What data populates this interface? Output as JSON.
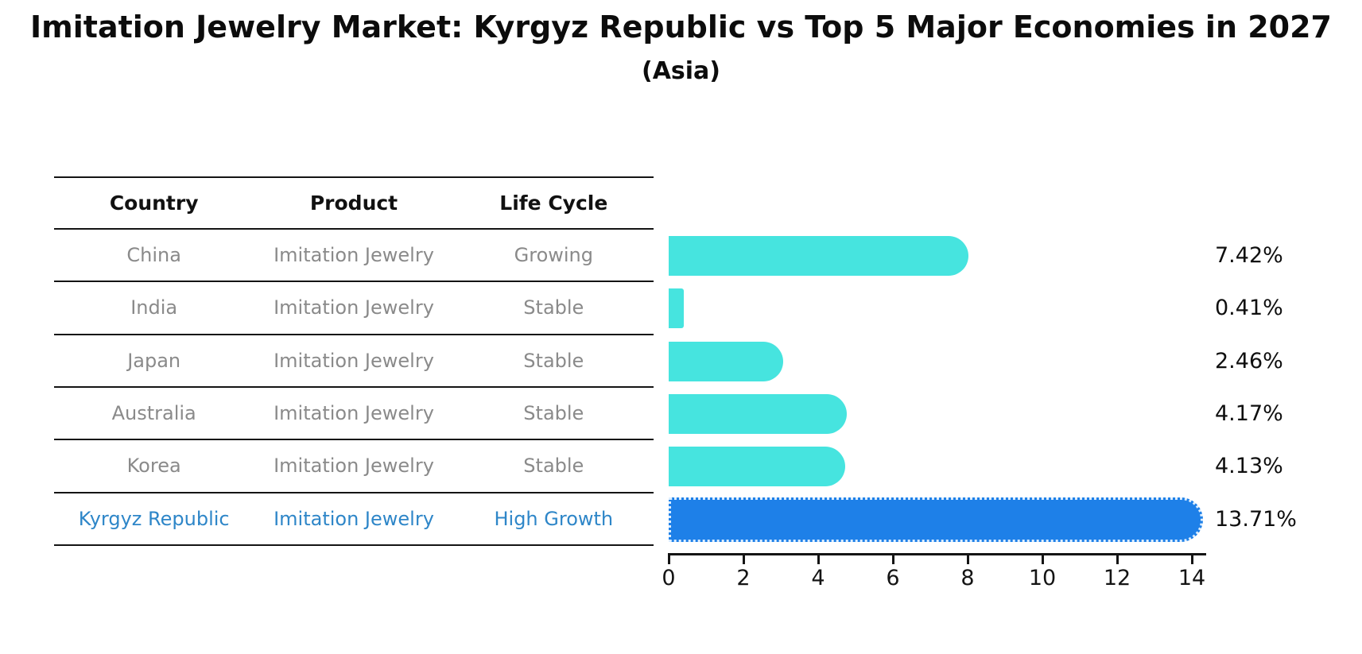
{
  "title": "Imitation Jewelry Market: Kyrgyz Republic vs Top 5 Major Economies in 2027",
  "subtitle": "(Asia)",
  "colors": {
    "bar": "#46E4DF",
    "highlight_bar": "#1E80E8",
    "highlight_text": "#2E86C8",
    "row_text": "#8A8A8A",
    "header_text": "#111111",
    "table_line": "#141414",
    "axis": "#141414",
    "value_label": "#0F0F0F"
  },
  "table": {
    "headers": [
      "Country",
      "Product",
      "Life Cycle"
    ],
    "rows": [
      {
        "country": "China",
        "product": "Imitation Jewelry",
        "life_cycle": "Growing",
        "highlight": false
      },
      {
        "country": "India",
        "product": "Imitation Jewelry",
        "life_cycle": "Stable",
        "highlight": false
      },
      {
        "country": "Japan",
        "product": "Imitation Jewelry",
        "life_cycle": "Stable",
        "highlight": false
      },
      {
        "country": "Australia",
        "product": "Imitation Jewelry",
        "life_cycle": "Stable",
        "highlight": false
      },
      {
        "country": "Korea",
        "product": "Imitation Jewelry",
        "life_cycle": "Stable",
        "highlight": false
      },
      {
        "country": "Kyrgyz Republic",
        "product": "Imitation Jewelry",
        "life_cycle": "High Growth",
        "highlight": true
      }
    ]
  },
  "chart_data": {
    "type": "bar",
    "orientation": "horizontal",
    "title": "Imitation Jewelry Market: Kyrgyz Republic vs Top 5 Major Economies in 2027 (Asia)",
    "categories": [
      "China",
      "India",
      "Japan",
      "Australia",
      "Korea",
      "Kyrgyz Republic"
    ],
    "values": [
      7.42,
      0.41,
      2.46,
      4.17,
      4.13,
      13.71
    ],
    "value_labels": [
      "7.42%",
      "0.41%",
      "2.46%",
      "4.17%",
      "4.13%",
      "13.71%"
    ],
    "highlight_index": 5,
    "xlim": [
      0,
      14.4
    ],
    "xticks": [
      0,
      2,
      4,
      6,
      8,
      10,
      12,
      14
    ],
    "grid": false,
    "legend": false,
    "bar_color": "#46E4DF",
    "highlight_color": "#1E80E8"
  }
}
